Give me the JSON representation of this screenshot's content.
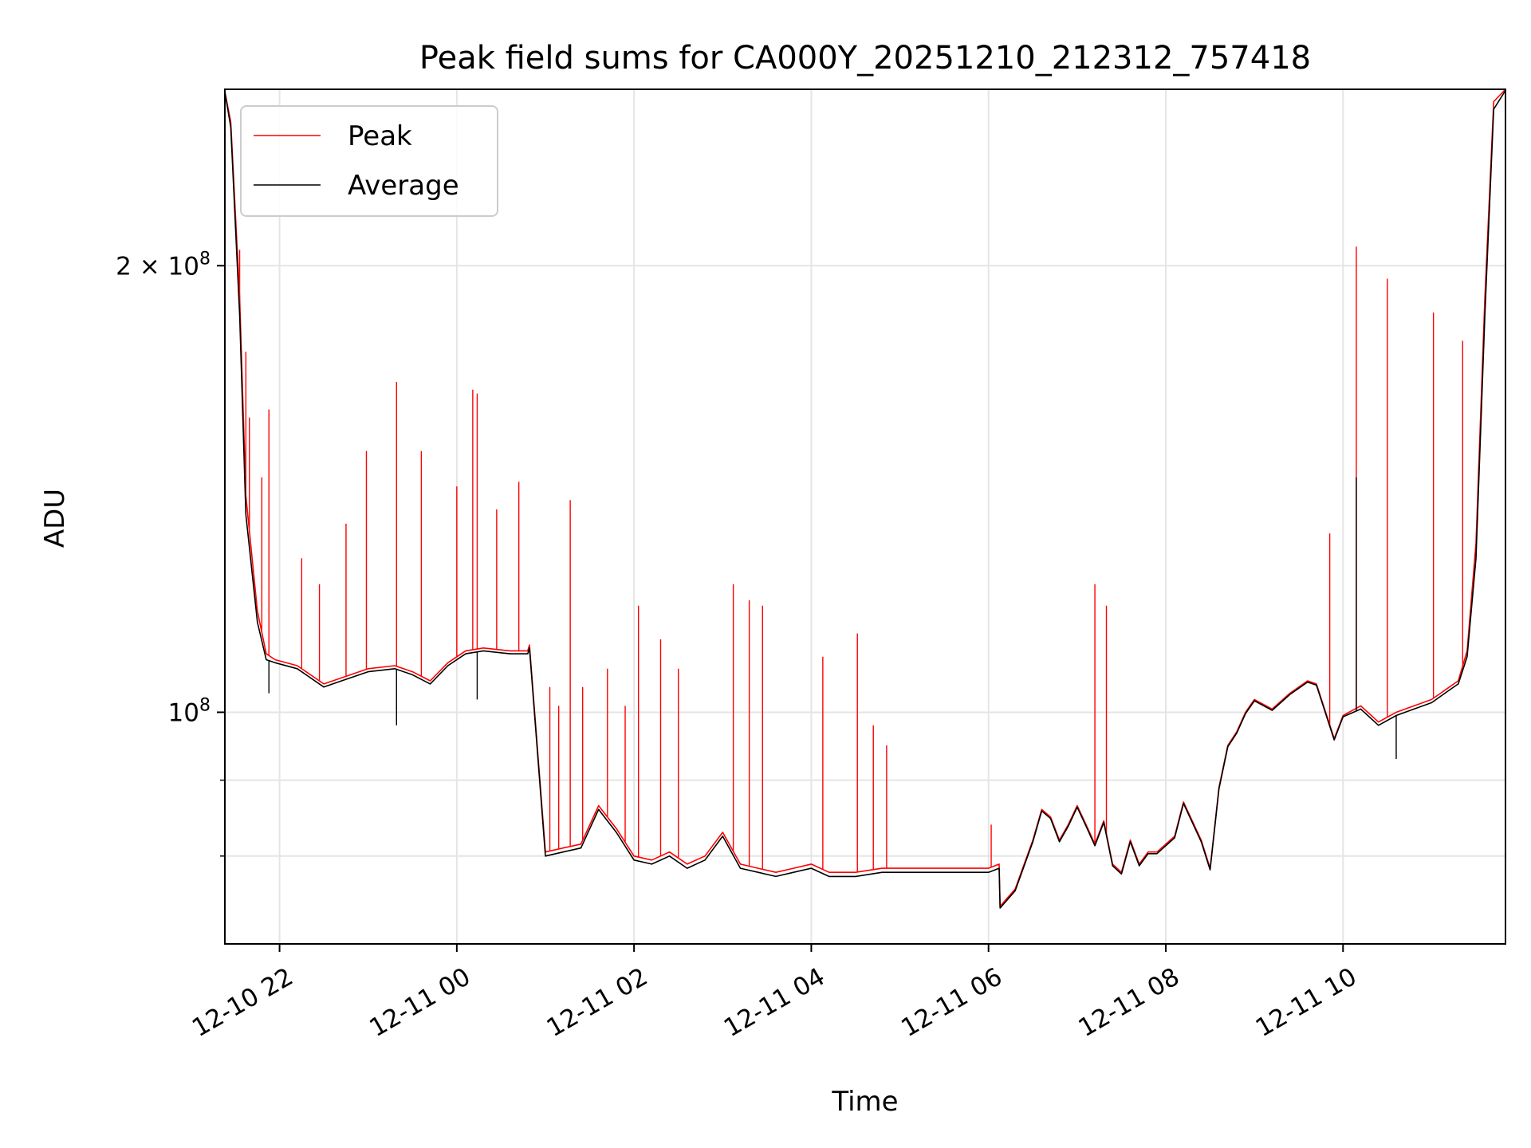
{
  "chart_data": {
    "type": "line",
    "title": "Peak field sums for CA000Y_20251210_212312_757418",
    "xlabel": "Time",
    "ylabel": "ADU",
    "yscale": "log",
    "grid": true,
    "legend_position": "upper-left",
    "xlim_hours": [
      21.383,
      35.833
    ],
    "ylim": [
      69800000,
      263000000
    ],
    "xticks": [
      {
        "hours": 22,
        "label": "12-10 22"
      },
      {
        "hours": 24,
        "label": "12-11 00"
      },
      {
        "hours": 26,
        "label": "12-11 02"
      },
      {
        "hours": 28,
        "label": "12-11 04"
      },
      {
        "hours": 30,
        "label": "12-11 06"
      },
      {
        "hours": 32,
        "label": "12-11 08"
      },
      {
        "hours": 34,
        "label": "12-11 10"
      }
    ],
    "yticks": [
      {
        "value": 100000000,
        "base": "10",
        "exp": "8",
        "coef": ""
      },
      {
        "value": 200000000,
        "base": "10",
        "exp": "8",
        "coef": "2 × "
      }
    ],
    "yminor_ticks": [
      80000000,
      90000000
    ],
    "series": [
      {
        "name": "Peak",
        "color": "#ff0000",
        "x_hours": [
          21.383,
          21.45,
          21.55,
          21.62,
          21.75,
          21.85,
          21.95,
          22.2,
          22.5,
          22.7,
          23.0,
          23.3,
          23.5,
          23.7,
          23.9,
          24.1,
          24.3,
          24.6,
          24.8,
          24.82,
          25.0,
          25.2,
          25.4,
          25.6,
          25.8,
          26.0,
          26.2,
          26.4,
          26.6,
          26.8,
          27.0,
          27.2,
          27.4,
          27.6,
          27.8,
          28.0,
          28.2,
          28.5,
          28.8,
          29.1,
          29.4,
          29.7,
          30.0,
          30.12,
          30.13,
          30.3,
          30.5,
          30.6,
          30.7,
          30.8,
          30.9,
          31.0,
          31.1,
          31.2,
          31.3,
          31.4,
          31.5,
          31.6,
          31.7,
          31.8,
          31.9,
          32.0,
          32.1,
          32.2,
          32.4,
          32.5,
          32.6,
          32.7,
          32.8,
          32.9,
          33.0,
          33.2,
          33.4,
          33.6,
          33.7,
          33.9,
          34.0,
          34.2,
          34.4,
          34.6,
          34.8,
          35.0,
          35.1,
          35.2,
          35.3,
          35.4,
          35.5,
          35.6,
          35.7,
          35.833
        ],
        "values": [
          262000000,
          250000000,
          190000000,
          140000000,
          117000000,
          109500000,
          108500000,
          107500000,
          104500000,
          105500000,
          107000000,
          107500000,
          106500000,
          105000000,
          108000000,
          110000000,
          110500000,
          110000000,
          110000000,
          111000000,
          80500000,
          81000000,
          81500000,
          86500000,
          83500000,
          80000000,
          79500000,
          80500000,
          79000000,
          80000000,
          83000000,
          79000000,
          78500000,
          78000000,
          78500000,
          79000000,
          78000000,
          78000000,
          78500000,
          78500000,
          78500000,
          78500000,
          78500000,
          79000000,
          74000000,
          76000000,
          82000000,
          86000000,
          85000000,
          82000000,
          84000000,
          86500000,
          84000000,
          81500000,
          84500000,
          79000000,
          78000000,
          82000000,
          79000000,
          80500000,
          80500000,
          81500000,
          82500000,
          87000000,
          82000000,
          78500000,
          89000000,
          95000000,
          97000000,
          100000000,
          102000000,
          100500000,
          103000000,
          105000000,
          104500000,
          96000000,
          99500000,
          101000000,
          98500000,
          100000000,
          101000000,
          102000000,
          103000000,
          104000000,
          105000000,
          110000000,
          130000000,
          190000000,
          258000000,
          263000000
        ],
        "spikes": [
          {
            "x_hours": 21.55,
            "value": 205000000
          },
          {
            "x_hours": 21.62,
            "value": 175000000
          },
          {
            "x_hours": 21.66,
            "value": 158000000
          },
          {
            "x_hours": 21.8,
            "value": 144000000
          },
          {
            "x_hours": 21.88,
            "value": 160000000
          },
          {
            "x_hours": 22.25,
            "value": 127000000
          },
          {
            "x_hours": 22.45,
            "value": 122000000
          },
          {
            "x_hours": 22.75,
            "value": 134000000
          },
          {
            "x_hours": 22.98,
            "value": 150000000
          },
          {
            "x_hours": 23.32,
            "value": 167000000
          },
          {
            "x_hours": 23.6,
            "value": 150000000
          },
          {
            "x_hours": 24.0,
            "value": 142000000
          },
          {
            "x_hours": 24.18,
            "value": 165000000
          },
          {
            "x_hours": 24.23,
            "value": 164000000
          },
          {
            "x_hours": 24.45,
            "value": 137000000
          },
          {
            "x_hours": 24.7,
            "value": 143000000
          },
          {
            "x_hours": 25.05,
            "value": 104000000
          },
          {
            "x_hours": 25.15,
            "value": 101000000
          },
          {
            "x_hours": 25.28,
            "value": 139000000
          },
          {
            "x_hours": 25.42,
            "value": 104000000
          },
          {
            "x_hours": 25.7,
            "value": 107000000
          },
          {
            "x_hours": 25.9,
            "value": 101000000
          },
          {
            "x_hours": 26.05,
            "value": 118000000
          },
          {
            "x_hours": 26.3,
            "value": 112000000
          },
          {
            "x_hours": 26.5,
            "value": 107000000
          },
          {
            "x_hours": 27.12,
            "value": 122000000
          },
          {
            "x_hours": 27.3,
            "value": 119000000
          },
          {
            "x_hours": 27.45,
            "value": 118000000
          },
          {
            "x_hours": 28.13,
            "value": 109000000
          },
          {
            "x_hours": 28.52,
            "value": 113000000
          },
          {
            "x_hours": 28.7,
            "value": 98000000
          },
          {
            "x_hours": 28.85,
            "value": 95000000
          },
          {
            "x_hours": 30.03,
            "value": 84000000
          },
          {
            "x_hours": 31.2,
            "value": 122000000
          },
          {
            "x_hours": 31.33,
            "value": 118000000
          },
          {
            "x_hours": 33.85,
            "value": 132000000
          },
          {
            "x_hours": 34.15,
            "value": 206000000
          },
          {
            "x_hours": 34.5,
            "value": 196000000
          },
          {
            "x_hours": 35.02,
            "value": 186000000
          },
          {
            "x_hours": 35.35,
            "value": 178000000
          }
        ]
      },
      {
        "name": "Average",
        "color": "#000000",
        "x_hours": [
          21.383,
          21.45,
          21.55,
          21.62,
          21.75,
          21.85,
          21.95,
          22.2,
          22.5,
          22.7,
          23.0,
          23.3,
          23.5,
          23.7,
          23.9,
          24.1,
          24.3,
          24.6,
          24.8,
          24.82,
          25.0,
          25.2,
          25.4,
          25.6,
          25.8,
          26.0,
          26.2,
          26.4,
          26.6,
          26.8,
          27.0,
          27.2,
          27.4,
          27.6,
          27.8,
          28.0,
          28.2,
          28.5,
          28.8,
          29.1,
          29.4,
          29.7,
          30.0,
          30.12,
          30.13,
          30.3,
          30.5,
          30.6,
          30.7,
          30.8,
          30.9,
          31.0,
          31.1,
          31.2,
          31.3,
          31.4,
          31.5,
          31.6,
          31.7,
          31.8,
          31.9,
          32.0,
          32.1,
          32.2,
          32.4,
          32.5,
          32.6,
          32.7,
          32.8,
          32.9,
          33.0,
          33.2,
          33.4,
          33.6,
          33.7,
          33.9,
          34.0,
          34.2,
          34.4,
          34.6,
          34.8,
          35.0,
          35.1,
          35.2,
          35.3,
          35.4,
          35.5,
          35.6,
          35.7,
          35.833
        ],
        "values": [
          262000000,
          248000000,
          185000000,
          136000000,
          115000000,
          108500000,
          108000000,
          107000000,
          104000000,
          105000000,
          106500000,
          107000000,
          106000000,
          104500000,
          107500000,
          109500000,
          110000000,
          109500000,
          109500000,
          110500000,
          80000000,
          80500000,
          81000000,
          86000000,
          83000000,
          79500000,
          79000000,
          80000000,
          78500000,
          79500000,
          82500000,
          78500000,
          78000000,
          77500000,
          78000000,
          78500000,
          77500000,
          77500000,
          78000000,
          78000000,
          78000000,
          78000000,
          78000000,
          78500000,
          73800000,
          75800000,
          81800000,
          85800000,
          84800000,
          81800000,
          83800000,
          86300000,
          83800000,
          81300000,
          84300000,
          78800000,
          77800000,
          81800000,
          78800000,
          80300000,
          80300000,
          81300000,
          82300000,
          86800000,
          81800000,
          78300000,
          88800000,
          94800000,
          96800000,
          99800000,
          101800000,
          100300000,
          102800000,
          104800000,
          104300000,
          95800000,
          99300000,
          100500000,
          98000000,
          99500000,
          100500000,
          101500000,
          102500000,
          103500000,
          104500000,
          109000000,
          127000000,
          185000000,
          255000000,
          262500000
        ],
        "spikes": [
          {
            "x_hours": 21.88,
            "value": 103000000
          },
          {
            "x_hours": 23.32,
            "value": 98000000
          },
          {
            "x_hours": 24.23,
            "value": 102000000
          },
          {
            "x_hours": 34.15,
            "value": 144000000
          },
          {
            "x_hours": 34.6,
            "value": 93000000
          }
        ]
      }
    ]
  },
  "legend": {
    "items": [
      {
        "label": "Peak",
        "color": "#ff0000"
      },
      {
        "label": "Average",
        "color": "#000000"
      }
    ]
  }
}
